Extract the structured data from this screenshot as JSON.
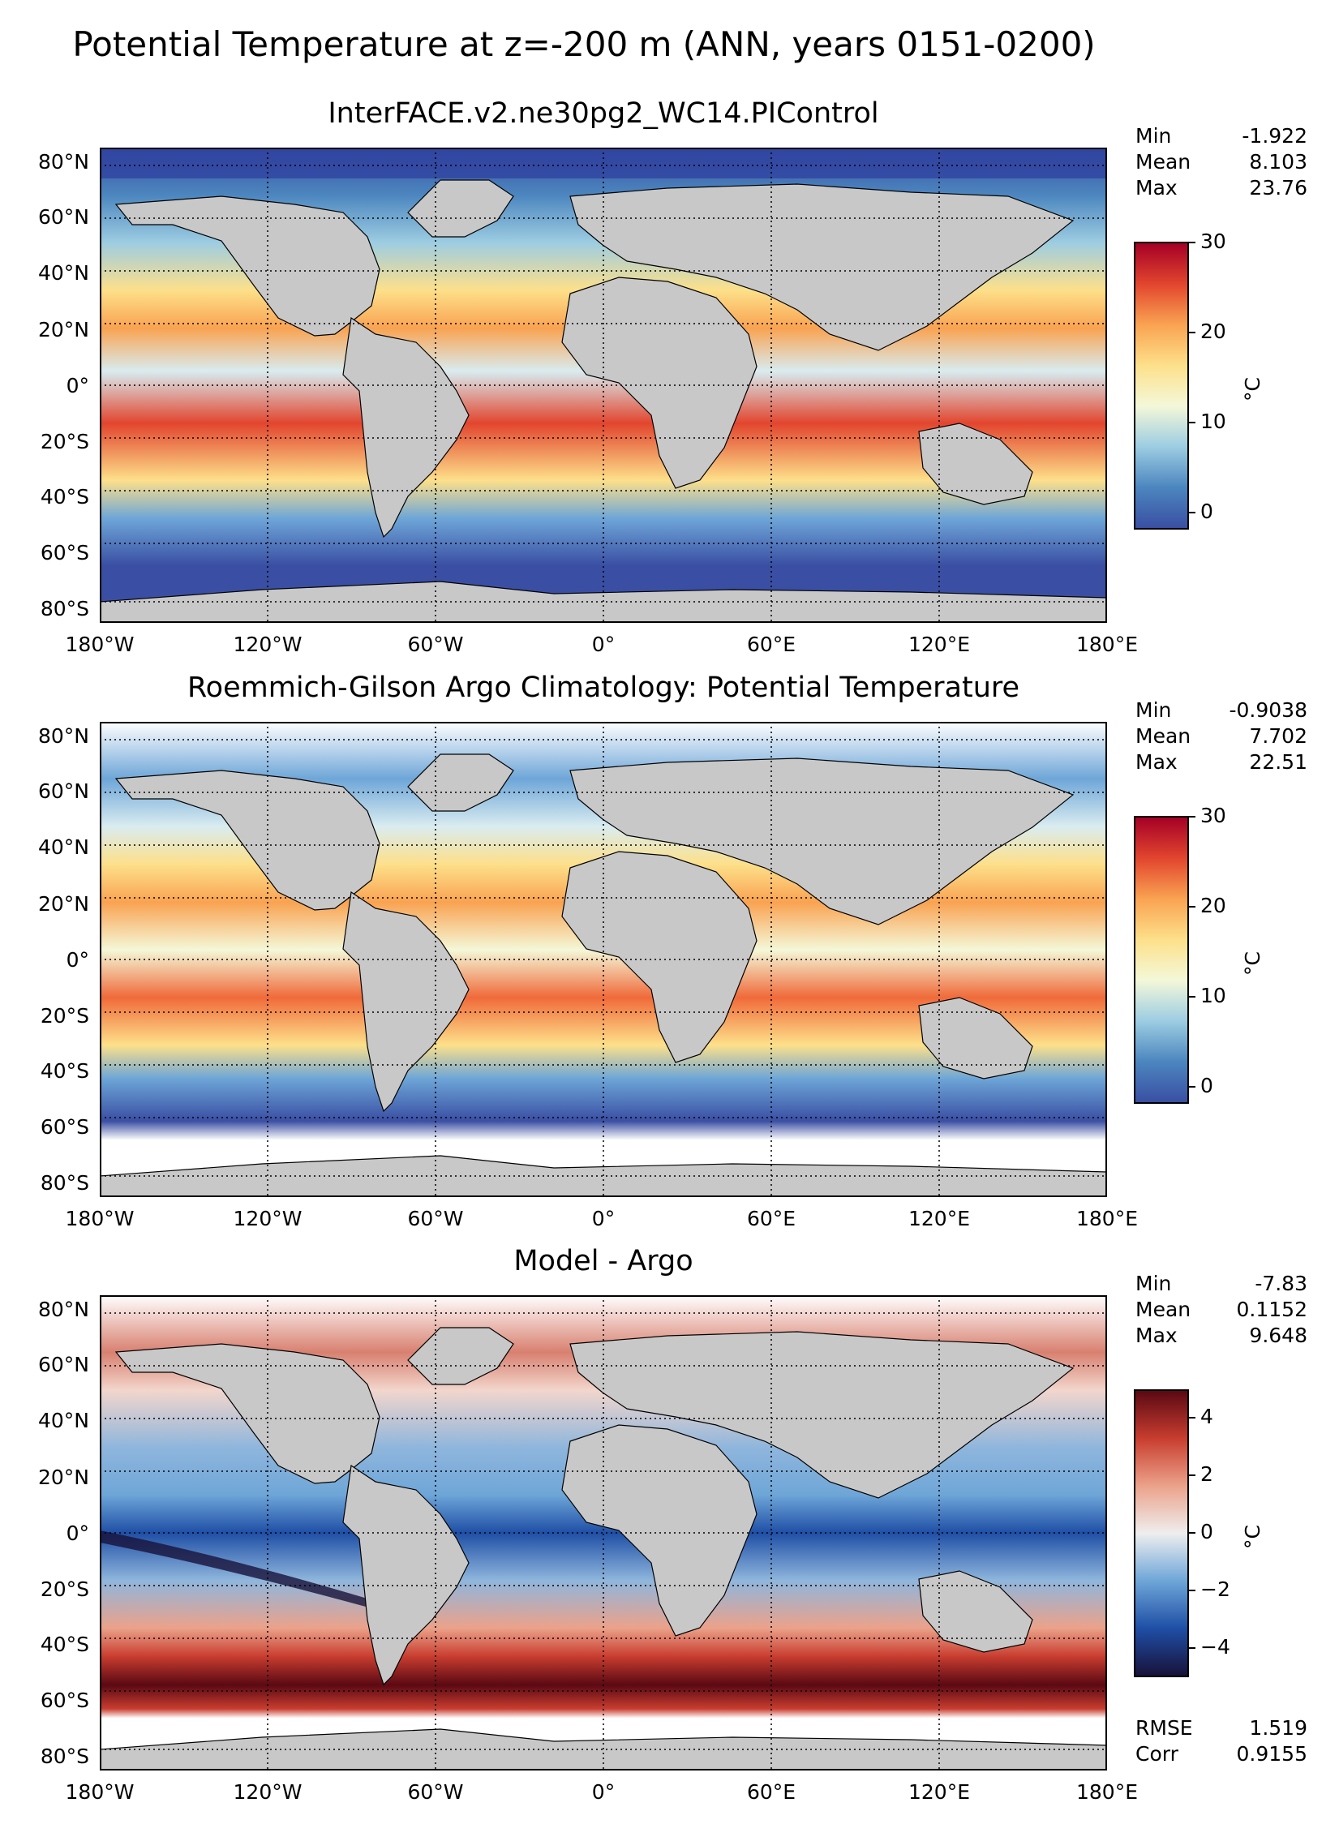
{
  "title": "Potential Temperature at z=-200 m (ANN, years 0151-0200)",
  "lat_labels": [
    "80°N",
    "60°N",
    "40°N",
    "20°N",
    "0°",
    "20°S",
    "40°S",
    "60°S",
    "80°S"
  ],
  "lon_labels": [
    "180°W",
    "120°W",
    "60°W",
    "0°",
    "60°E",
    "120°E",
    "180°E"
  ],
  "colors": {
    "land": "#c8c8c8",
    "nodata": "#ffffff",
    "temp_ramp": [
      "#3a4fa3",
      "#4c86bf",
      "#9dcde2",
      "#f4f8d8",
      "#fde08a",
      "#f9a352",
      "#e2452e",
      "#a50026"
    ],
    "diff_ramp": [
      "#18123a",
      "#1f4fa6",
      "#6ea6d8",
      "#eeeeee",
      "#eba28a",
      "#c83d2f",
      "#5a0913"
    ]
  },
  "panels": [
    {
      "title": "InterFACE.v2.ne30pg2_WC14.PIControl",
      "stats": [
        {
          "label": "Min",
          "value": "-1.922"
        },
        {
          "label": "Mean",
          "value": "8.103"
        },
        {
          "label": "Max",
          "value": "23.76"
        }
      ],
      "colorbar": {
        "ticks": [
          "30",
          "20",
          "10",
          "0"
        ],
        "unit": "°C",
        "range": [
          -2,
          30
        ]
      },
      "footer": []
    },
    {
      "title": "Roemmich-Gilson Argo Climatology: Potential Temperature",
      "stats": [
        {
          "label": "Min",
          "value": "-0.9038"
        },
        {
          "label": "Mean",
          "value": "7.702"
        },
        {
          "label": "Max",
          "value": "22.51"
        }
      ],
      "colorbar": {
        "ticks": [
          "30",
          "20",
          "10",
          "0"
        ],
        "unit": "°C",
        "range": [
          -2,
          30
        ]
      },
      "footer": []
    },
    {
      "title": "Model - Argo",
      "stats": [
        {
          "label": "Min",
          "value": "-7.83"
        },
        {
          "label": "Mean",
          "value": "0.1152"
        },
        {
          "label": "Max",
          "value": "9.648"
        }
      ],
      "colorbar": {
        "ticks": [
          "4",
          "2",
          "0",
          "−2",
          "−4"
        ],
        "unit": "°C",
        "range": [
          -5,
          5
        ]
      },
      "footer": [
        {
          "label": "RMSE",
          "value": "1.519"
        },
        {
          "label": "Corr",
          "value": "0.9155"
        }
      ]
    }
  ]
}
